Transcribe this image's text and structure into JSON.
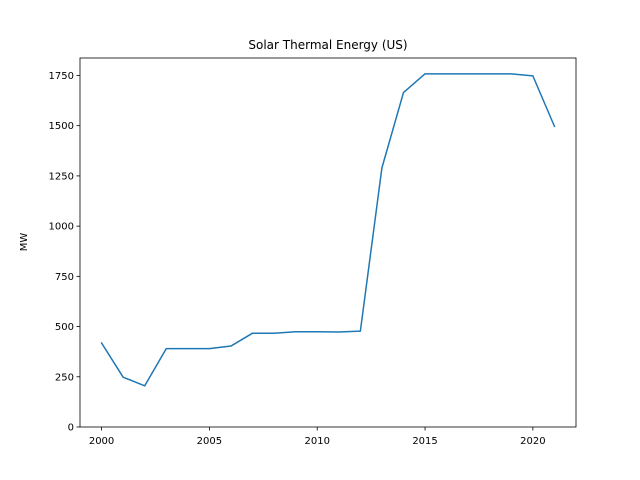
{
  "chart_data": {
    "type": "line",
    "title": "Solar Thermal Energy (US)",
    "xlabel": "",
    "ylabel": "MW",
    "xlim": [
      1999,
      2022
    ],
    "ylim": [
      0,
      1837
    ],
    "x_ticks": [
      2000,
      2005,
      2010,
      2015,
      2020
    ],
    "y_ticks": [
      0,
      250,
      500,
      750,
      1000,
      1250,
      1500,
      1750
    ],
    "grid": false,
    "series": [
      {
        "color": "#1f77b4",
        "x": [
          2000,
          2001,
          2002,
          2003,
          2004,
          2005,
          2006,
          2007,
          2008,
          2009,
          2010,
          2011,
          2012,
          2013,
          2014,
          2015,
          2016,
          2017,
          2018,
          2019,
          2020,
          2021
        ],
        "y": [
          418,
          248,
          205,
          390,
          390,
          390,
          403,
          467,
          467,
          474,
          474,
          473,
          477,
          1290,
          1665,
          1758,
          1758,
          1758,
          1758,
          1758,
          1748,
          1497
        ]
      }
    ]
  }
}
